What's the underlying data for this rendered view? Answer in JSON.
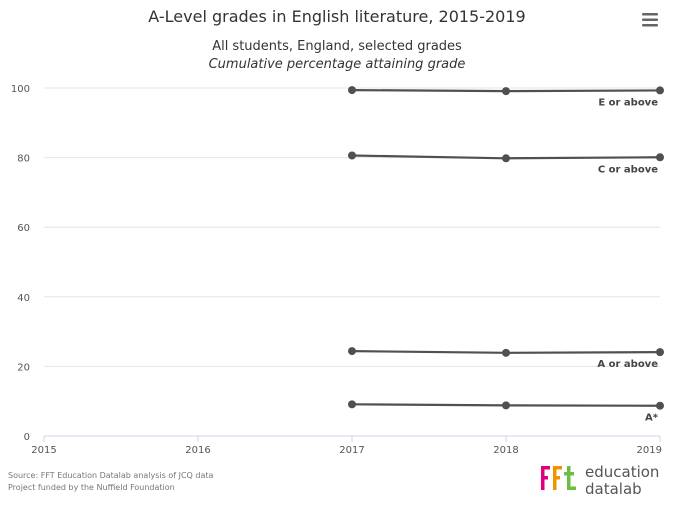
{
  "chart_data": {
    "type": "line",
    "title": "A-Level grades in English literature, 2015-2019",
    "subtitle": "All students, England, selected grades",
    "subtitle_italic": "Cumulative percentage attaining grade",
    "x": [
      "2015",
      "2016",
      "2017",
      "2018",
      "2019"
    ],
    "xlim": [
      2015,
      2019
    ],
    "ylim": [
      0,
      100
    ],
    "yticks": [
      0,
      20,
      40,
      60,
      80,
      100
    ],
    "grid": true,
    "legend": "inline-labels",
    "series_color": "#505050",
    "series": [
      {
        "name": "E or above",
        "x": [
          2017,
          2018,
          2019
        ],
        "values": [
          99.4,
          99.1,
          99.3
        ]
      },
      {
        "name": "C or above",
        "x": [
          2017,
          2018,
          2019
        ],
        "values": [
          80.6,
          79.8,
          80.1
        ]
      },
      {
        "name": "A or above",
        "x": [
          2017,
          2018,
          2019
        ],
        "values": [
          24.4,
          23.9,
          24.1
        ]
      },
      {
        "name": "A*",
        "x": [
          2017,
          2018,
          2019
        ],
        "values": [
          9.1,
          8.8,
          8.7
        ]
      }
    ]
  },
  "credits": {
    "line1": "Source: FFT Education Datalab analysis of JCQ data",
    "line2": "Project funded by the Nuffield Foundation"
  },
  "logo": {
    "mark": "fft",
    "word1": "education",
    "word2": "datalab",
    "colors": [
      "#e2007a",
      "#f39200",
      "#6cbd45"
    ]
  },
  "menu": {
    "icon": "hamburger-menu-icon"
  }
}
